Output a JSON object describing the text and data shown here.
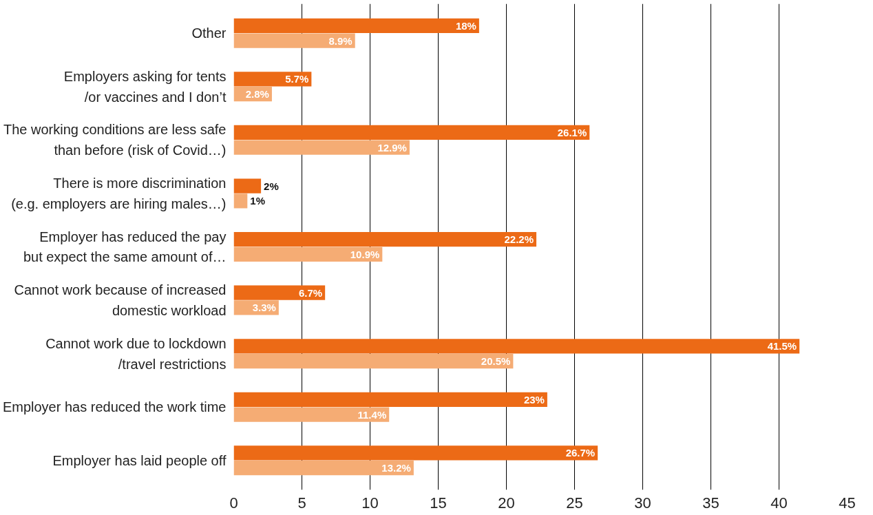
{
  "chart_data": {
    "type": "bar",
    "orientation": "horizontal",
    "categories": [
      "Other",
      "Employers asking for tents\n/or vaccines and I don’t",
      "The working conditions are less safe\nthan before (risk of Covid…)",
      "There is more discrimination\n(e.g. employers are hiring males…)",
      "Employer has reduced the pay\nbut expect the same amount of…",
      "Cannot work because of increased\ndomestic workload",
      "Cannot work due to lockdown\n/travel restrictions",
      "Employer has reduced the work time",
      "Employer has laid people off"
    ],
    "series": [
      {
        "color": "#ec6a16",
        "values": [
          18,
          5.7,
          26.1,
          2,
          22.2,
          6.7,
          41.5,
          23,
          26.7
        ],
        "value_labels": [
          "18%",
          "5.7%",
          "26.1%",
          "2%",
          "22.2%",
          "6.7%",
          "41.5%",
          "23%",
          "26.7%"
        ]
      },
      {
        "color": "#f5ac74",
        "values": [
          8.9,
          2.8,
          12.9,
          1,
          10.9,
          3.3,
          20.5,
          11.4,
          13.2
        ],
        "value_labels": [
          "8.9%",
          "2.8%",
          "12.9%",
          "1%",
          "10.9%",
          "3.3%",
          "20.5%",
          "11.4%",
          "13.2%"
        ]
      }
    ],
    "xlim": [
      0,
      45
    ],
    "xticks": [
      0,
      5,
      10,
      15,
      20,
      25,
      30,
      35,
      40,
      45
    ],
    "grid": "x"
  }
}
